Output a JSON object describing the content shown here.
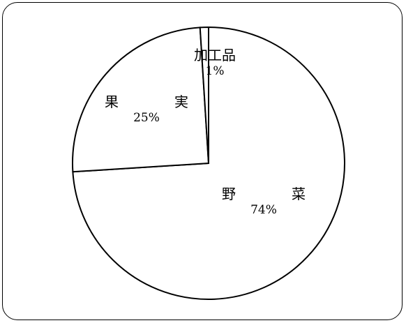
{
  "chart_data": {
    "type": "pie",
    "title": "",
    "categories": [
      "野菜",
      "果実",
      "加工品"
    ],
    "display_labels": [
      "野　菜",
      "果　実",
      "加工品"
    ],
    "values": [
      74,
      25,
      1
    ],
    "value_labels": [
      "74%",
      "25%",
      "1%"
    ],
    "start": "12 o'clock",
    "direction": "clockwise",
    "fill": "#ffffff",
    "stroke": "#000000",
    "legend": "none"
  }
}
